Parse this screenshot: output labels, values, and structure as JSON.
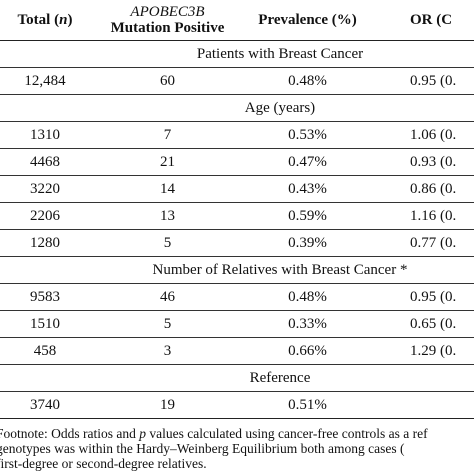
{
  "header": {
    "total": [
      "Total (",
      "n",
      ")"
    ],
    "mutation": [
      "APOBEC3B",
      "Mutation Positive"
    ],
    "prevalence": "Prevalence (%)",
    "or": "OR (C"
  },
  "sections": [
    {
      "title": "Patients with Breast Cancer",
      "rows": [
        [
          "12,484",
          "60",
          "0.48%",
          "0.95 (0."
        ]
      ]
    },
    {
      "title": "Age (years)",
      "rows": [
        [
          "1310",
          "7",
          "0.53%",
          "1.06 (0."
        ],
        [
          "4468",
          "21",
          "0.47%",
          "0.93 (0."
        ],
        [
          "3220",
          "14",
          "0.43%",
          "0.86 (0."
        ],
        [
          "2206",
          "13",
          "0.59%",
          "1.16 (0."
        ],
        [
          "1280",
          "5",
          "0.39%",
          "0.77 (0."
        ]
      ]
    },
    {
      "title": "Number of Relatives with Breast Cancer *",
      "rows": [
        [
          "9583",
          "46",
          "0.48%",
          "0.95 (0."
        ],
        [
          "1510",
          "5",
          "0.33%",
          "0.65 (0."
        ],
        [
          "458",
          "3",
          "0.66%",
          "1.29 (0."
        ]
      ]
    },
    {
      "title": "Reference",
      "rows": [
        [
          "3740",
          "19",
          "0.51%",
          ""
        ]
      ]
    }
  ],
  "footnote": [
    [
      "Footnote: Odds ratios and ",
      "p",
      " values calculated using cancer-free controls as a ref"
    ],
    [
      "genotypes was within the Hardy–Weinberg Equilibrium both among cases ("
    ],
    [
      "first-degree or second-degree relatives."
    ]
  ]
}
